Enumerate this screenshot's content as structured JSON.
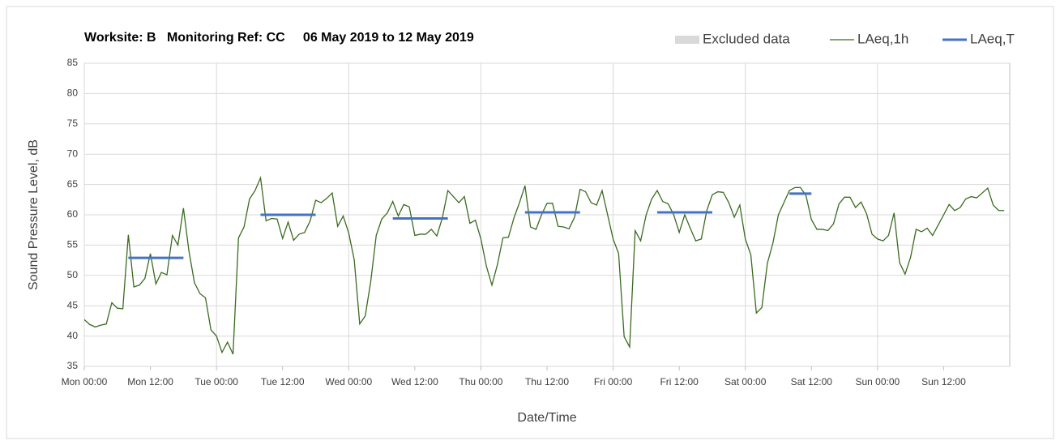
{
  "chart_data": {
    "type": "line",
    "title": "Worksite: B   Monitoring Ref: CC     06 May 2019 to 12 May 2019",
    "xlabel": "Date/Time",
    "ylabel": "Sound Pressure Level, dB",
    "xlim": [
      0,
      168
    ],
    "ylim": [
      35,
      85
    ],
    "xticks": [
      {
        "value": 0,
        "label": "Mon 00:00"
      },
      {
        "value": 12,
        "label": "Mon 12:00"
      },
      {
        "value": 24,
        "label": "Tue 00:00"
      },
      {
        "value": 36,
        "label": "Tue 12:00"
      },
      {
        "value": 48,
        "label": "Wed 00:00"
      },
      {
        "value": 60,
        "label": "Wed 12:00"
      },
      {
        "value": 72,
        "label": "Thu 00:00"
      },
      {
        "value": 84,
        "label": "Thu 12:00"
      },
      {
        "value": 96,
        "label": "Fri 00:00"
      },
      {
        "value": 108,
        "label": "Fri 12:00"
      },
      {
        "value": 120,
        "label": "Sat 00:00"
      },
      {
        "value": 132,
        "label": "Sat 12:00"
      },
      {
        "value": 144,
        "label": "Sun 00:00"
      },
      {
        "value": 156,
        "label": "Sun 12:00"
      }
    ],
    "yticks": [
      35,
      40,
      45,
      50,
      55,
      60,
      65,
      70,
      75,
      80,
      85
    ],
    "grid": true,
    "series": [
      {
        "name": "Excluded data",
        "color": "#d9d9d9",
        "x": [],
        "values": []
      },
      {
        "name": "LAeq,1h",
        "color": "#3a6b1f",
        "x": [
          0,
          1,
          2,
          3,
          4,
          5,
          6,
          7,
          8,
          9,
          10,
          11,
          12,
          13,
          14,
          15,
          16,
          17,
          18,
          19,
          20,
          21,
          22,
          23,
          24,
          25,
          26,
          27,
          28,
          29,
          30,
          31,
          32,
          33,
          34,
          35,
          36,
          37,
          38,
          39,
          40,
          41,
          42,
          43,
          44,
          45,
          46,
          47,
          48,
          49,
          50,
          51,
          52,
          53,
          54,
          55,
          56,
          57,
          58,
          59,
          60,
          61,
          62,
          63,
          64,
          65,
          66,
          67,
          68,
          69,
          70,
          71,
          72,
          73,
          74,
          75,
          76,
          77,
          78,
          79,
          80,
          81,
          82,
          83,
          84,
          85,
          86,
          87,
          88,
          89,
          90,
          91,
          92,
          93,
          94,
          95,
          96,
          97,
          98,
          99,
          100,
          101,
          102,
          103,
          104,
          105,
          106,
          107,
          108,
          109,
          110,
          111,
          112,
          113,
          114,
          115,
          116,
          117,
          118,
          119,
          120,
          121,
          122,
          123,
          124,
          125,
          126,
          127,
          128,
          129,
          130,
          131,
          132,
          133,
          134,
          135,
          136,
          137,
          138,
          139,
          140,
          141,
          142,
          143,
          144,
          145,
          146,
          147,
          148,
          149,
          150,
          151,
          152,
          153,
          154,
          155,
          156,
          157,
          158,
          159,
          160,
          161,
          162,
          163,
          164,
          165,
          166,
          167
        ],
        "values": [
          42.7,
          41.9,
          41.5,
          41.8,
          42,
          45.5,
          44.6,
          44.5,
          56.7,
          48.1,
          48.4,
          49.5,
          53.6,
          48.6,
          50.5,
          50.1,
          56.6,
          55,
          61.1,
          54,
          48.8,
          47,
          46.3,
          41,
          40,
          37.3,
          39,
          37,
          56.2,
          58,
          62.6,
          64,
          66.1,
          59,
          59.4,
          59.3,
          56.1,
          58.8,
          55.8,
          56.8,
          57.1,
          59,
          62.4,
          62,
          62.7,
          63.6,
          58.1,
          59.8,
          57,
          52.6,
          42,
          43.3,
          49,
          56.6,
          59.3,
          60.3,
          62.2,
          59.8,
          61.7,
          61.3,
          56.6,
          56.8,
          56.8,
          57.6,
          56.5,
          59.5,
          64,
          63,
          62,
          63,
          58.6,
          59.1,
          56,
          51.5,
          48.4,
          51.8,
          56.2,
          56.3,
          59.5,
          62,
          64.8,
          58,
          57.6,
          60,
          61.9,
          61.9,
          58.1,
          58,
          57.7,
          59.6,
          64.2,
          63.8,
          62,
          61.6,
          64,
          60,
          56,
          53.6,
          39.9,
          38.2,
          57.4,
          55.7,
          60,
          62.6,
          64,
          62.2,
          61.8,
          60,
          57.1,
          60,
          57.8,
          55.7,
          56,
          60.7,
          63.3,
          63.8,
          63.7,
          62,
          59.6,
          61.6,
          56,
          53.4,
          43.8,
          44.7,
          52,
          55.3,
          60,
          62,
          64,
          64.5,
          64.5,
          63.2,
          59.2,
          57.6,
          57.6,
          57.4,
          58.5,
          61.8,
          62.9,
          62.9,
          61.2,
          62.1,
          60.2,
          56.8,
          56,
          55.7,
          56.6,
          60.3,
          52.1,
          50.2,
          53,
          57.6,
          57.2,
          57.8,
          56.6,
          58.3,
          60,
          61.7,
          60.7,
          61.2,
          62.6,
          63,
          62.8,
          63.6,
          64.4,
          61.6,
          60.7,
          60.7
        ]
      },
      {
        "name": "LAeq,T",
        "color": "#4472c4",
        "x": [
          8,
          18,
          18,
          32,
          42,
          42,
          56,
          66,
          66,
          80,
          90,
          90,
          104,
          114,
          114,
          128,
          132
        ],
        "values": [
          52.9,
          52.9,
          null,
          60,
          60,
          null,
          59.4,
          59.4,
          null,
          60.4,
          60.4,
          null,
          60.4,
          60.4,
          null,
          63.5,
          63.5
        ]
      }
    ]
  }
}
